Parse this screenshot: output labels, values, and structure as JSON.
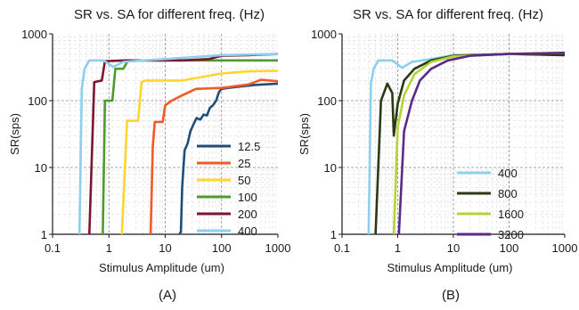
{
  "chart_data": [
    {
      "type": "line",
      "panel_label": "(A)",
      "title": "SR vs. SA for different freq. (Hz)",
      "xlabel": "Stimulus Amplitude (um)",
      "ylabel": "SR(sps)",
      "x_scale": "log",
      "y_scale": "log",
      "xlim": [
        0.1,
        1000
      ],
      "ylim": [
        1,
        1000
      ],
      "x_ticks": [
        "0.1",
        "1",
        "10",
        "100",
        "1000"
      ],
      "y_ticks": [
        "1",
        "10",
        "100",
        "1000"
      ],
      "grid": true,
      "legend_position": "bottom-right",
      "series": [
        {
          "name": "12.5",
          "color": "#1f4e79",
          "points": [
            [
              18,
              1
            ],
            [
              19,
              1.1
            ],
            [
              20,
              5
            ],
            [
              22,
              18
            ],
            [
              25,
              23
            ],
            [
              28,
              35
            ],
            [
              32,
              45
            ],
            [
              36,
              55
            ],
            [
              42,
              52
            ],
            [
              48,
              62
            ],
            [
              55,
              60
            ],
            [
              62,
              78
            ],
            [
              70,
              85
            ],
            [
              80,
              100
            ],
            [
              90,
              135
            ],
            [
              100,
              150
            ],
            [
              130,
              155
            ],
            [
              200,
              162
            ],
            [
              400,
              172
            ],
            [
              1000,
              180
            ]
          ]
        },
        {
          "name": "25",
          "color": "#f05a28",
          "points": [
            [
              5.5,
              1
            ],
            [
              6,
              20
            ],
            [
              6.5,
              48
            ],
            [
              9,
              48
            ],
            [
              10,
              85
            ],
            [
              13,
              100
            ],
            [
              20,
              120
            ],
            [
              35,
              150
            ],
            [
              100,
              155
            ],
            [
              300,
              175
            ],
            [
              500,
              205
            ],
            [
              1000,
              195
            ]
          ]
        },
        {
          "name": "50",
          "color": "#ffd52e",
          "points": [
            [
              1.7,
              1
            ],
            [
              2.1,
              50
            ],
            [
              3.3,
              50
            ],
            [
              3.8,
              190
            ],
            [
              4.5,
              200
            ],
            [
              20,
              200
            ],
            [
              100,
              255
            ],
            [
              300,
              275
            ],
            [
              1000,
              280
            ]
          ]
        },
        {
          "name": "100",
          "color": "#4e9a2c",
          "points": [
            [
              0.78,
              1
            ],
            [
              0.85,
              100
            ],
            [
              1.15,
              100
            ],
            [
              1.3,
              300
            ],
            [
              1.8,
              300
            ],
            [
              2.2,
              400
            ],
            [
              10,
              400
            ],
            [
              100,
              400
            ],
            [
              1000,
              400
            ]
          ]
        },
        {
          "name": "200",
          "color": "#7b1530",
          "points": [
            [
              0.45,
              1
            ],
            [
              0.55,
              190
            ],
            [
              0.75,
              200
            ],
            [
              0.85,
              390
            ],
            [
              2,
              400
            ],
            [
              20,
              400
            ],
            [
              60,
              420
            ],
            [
              100,
              470
            ],
            [
              300,
              480
            ],
            [
              1000,
              500
            ]
          ]
        },
        {
          "name": "400",
          "color": "#8ccfee",
          "points": [
            [
              0.3,
              1
            ],
            [
              0.33,
              150
            ],
            [
              0.37,
              300
            ],
            [
              0.45,
              400
            ],
            [
              0.8,
              400
            ],
            [
              1.2,
              320
            ],
            [
              1.8,
              380
            ],
            [
              4,
              400
            ],
            [
              10,
              420
            ],
            [
              100,
              480
            ],
            [
              1000,
              500
            ]
          ]
        }
      ]
    },
    {
      "type": "line",
      "panel_label": "(B)",
      "title": "SR vs. SA for different freq. (Hz)",
      "xlabel": "Stimulus Amplitude (um)",
      "ylabel": "SR(sps)",
      "x_scale": "log",
      "y_scale": "log",
      "xlim": [
        0.1,
        1000
      ],
      "ylim": [
        1,
        1000
      ],
      "x_ticks": [
        "0.1",
        "1",
        "10",
        "100",
        "1000"
      ],
      "y_ticks": [
        "1",
        "10",
        "100",
        "1000"
      ],
      "grid": true,
      "legend_position": "bottom-right",
      "series": [
        {
          "name": "400",
          "color": "#8ccfee",
          "points": [
            [
              0.3,
              1
            ],
            [
              0.33,
              180
            ],
            [
              0.37,
              300
            ],
            [
              0.45,
              400
            ],
            [
              0.8,
              400
            ],
            [
              1.2,
              310
            ],
            [
              1.8,
              380
            ],
            [
              4,
              420
            ],
            [
              10,
              480
            ],
            [
              100,
              500
            ],
            [
              1000,
              500
            ]
          ]
        },
        {
          "name": "800",
          "color": "#2b3a13",
          "points": [
            [
              0.4,
              1
            ],
            [
              0.5,
              100
            ],
            [
              0.65,
              180
            ],
            [
              0.8,
              130
            ],
            [
              0.85,
              30
            ],
            [
              1,
              90
            ],
            [
              1.3,
              200
            ],
            [
              2,
              300
            ],
            [
              4,
              400
            ],
            [
              10,
              470
            ],
            [
              100,
              500
            ],
            [
              1000,
              480
            ]
          ]
        },
        {
          "name": "1600",
          "color": "#b5d334",
          "points": [
            [
              0.85,
              1
            ],
            [
              1,
              40
            ],
            [
              1.3,
              120
            ],
            [
              2,
              250
            ],
            [
              4,
              380
            ],
            [
              10,
              460
            ],
            [
              100,
              500
            ],
            [
              1000,
              520
            ]
          ]
        },
        {
          "name": "3200",
          "color": "#5b2a86",
          "points": [
            [
              1.05,
              1
            ],
            [
              1.3,
              35
            ],
            [
              1.8,
              100
            ],
            [
              2.5,
              200
            ],
            [
              4,
              300
            ],
            [
              8,
              400
            ],
            [
              20,
              470
            ],
            [
              100,
              500
            ],
            [
              1000,
              520
            ]
          ]
        }
      ]
    }
  ]
}
